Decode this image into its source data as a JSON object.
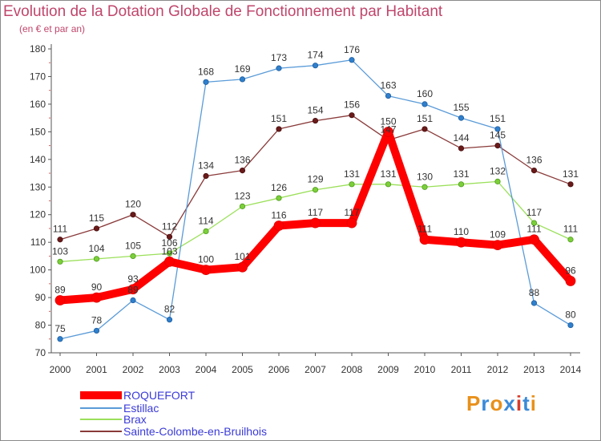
{
  "title": "Evolution de la Dotation Globale de Fonctionnement par Habitant",
  "subtitle": "(en € et par an)",
  "logo": "Proxiti",
  "chart_data": {
    "type": "line",
    "title": "Evolution de la Dotation Globale de Fonctionnement par Habitant",
    "subtitle": "(en € et par an)",
    "xlabel": "",
    "ylabel": "",
    "ylim": [
      70,
      180
    ],
    "yticks": [
      70,
      80,
      90,
      100,
      110,
      120,
      130,
      140,
      150,
      160,
      170,
      180
    ],
    "grid": false,
    "legend": "bottom-left",
    "x": [
      "2000",
      "2001",
      "2002",
      "2003",
      "2004",
      "2005",
      "2006",
      "2007",
      "2008",
      "2009",
      "2010",
      "2011",
      "2012",
      "2013",
      "2014"
    ],
    "series": [
      {
        "name": "ROQUEFORT",
        "color": "#ff0000",
        "values": [
          89,
          90,
          93,
          103,
          100,
          101,
          116,
          117,
          117,
          150,
          111,
          110,
          109,
          111,
          96
        ]
      },
      {
        "name": "Estillac",
        "color": "#4a90d9",
        "values": [
          75,
          78,
          89,
          82,
          168,
          169,
          173,
          174,
          176,
          163,
          160,
          155,
          151,
          88,
          80
        ]
      },
      {
        "name": "Brax",
        "color": "#8cd84a",
        "values": [
          103,
          104,
          105,
          106,
          114,
          123,
          126,
          129,
          131,
          131,
          130,
          131,
          132,
          117,
          111
        ]
      },
      {
        "name": "Sainte-Colombe-en-Bruilhois",
        "color": "#7a2a2a",
        "values": [
          111,
          115,
          120,
          112,
          134,
          136,
          151,
          154,
          156,
          147,
          151,
          144,
          145,
          136,
          131
        ]
      }
    ]
  }
}
